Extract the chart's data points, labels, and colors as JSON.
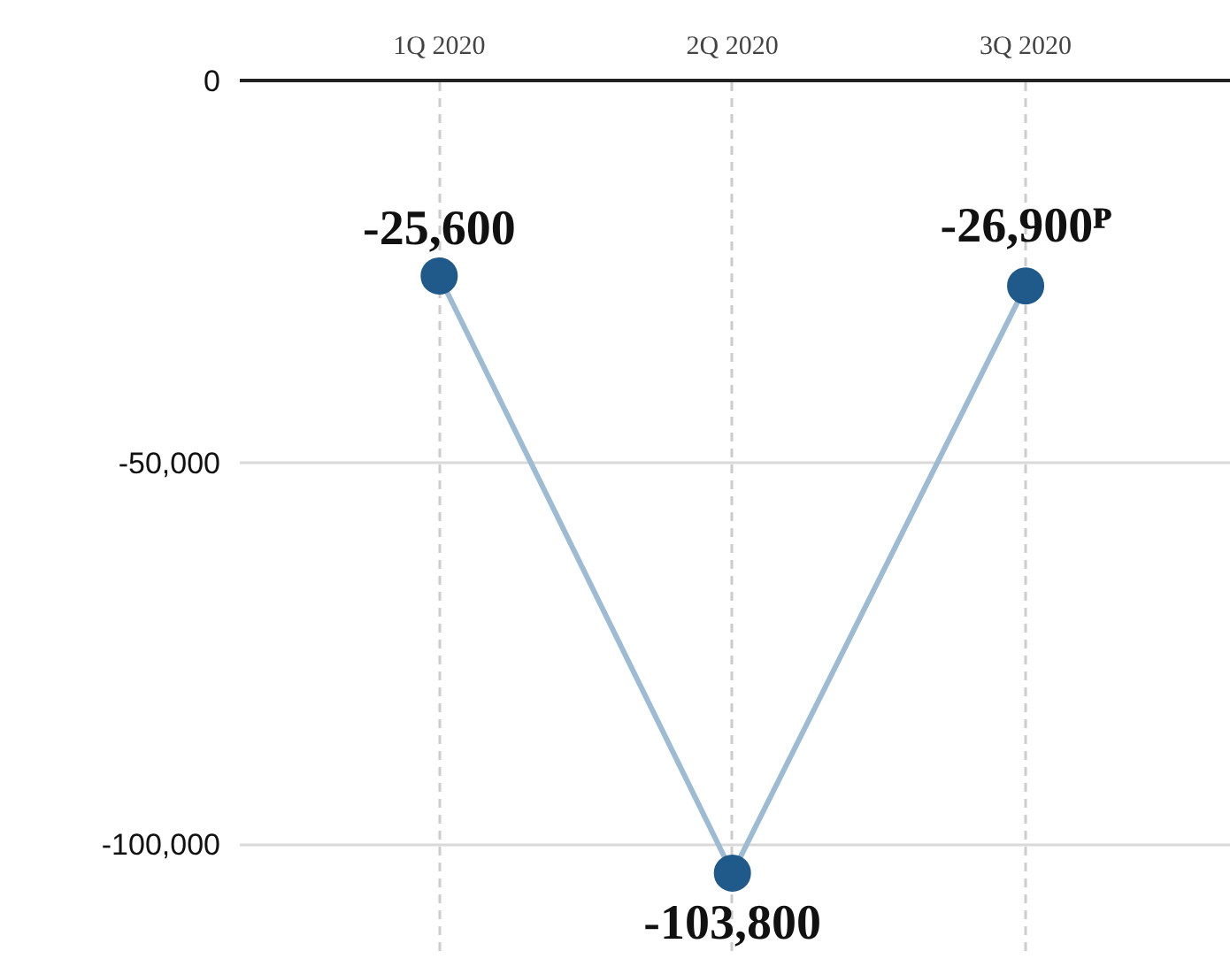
{
  "chart_data": {
    "type": "line",
    "categories": [
      "1Q 2020",
      "2Q 2020",
      "3Q 2020"
    ],
    "series": [
      {
        "color": "#9dbbd3",
        "values": [
          -25600,
          -103800,
          -26900
        ],
        "value_labels": [
          "-25,600",
          "-103,800",
          "-26,900ᴾ"
        ]
      }
    ],
    "ylim": [
      -114000,
      0
    ],
    "yticks": [
      {
        "value": 0,
        "label": "0"
      },
      {
        "value": -50000,
        "label": "-50,000"
      },
      {
        "value": -100000,
        "label": "-100,000"
      }
    ],
    "grid": true,
    "marker": "circle",
    "line_style": "solid"
  }
}
